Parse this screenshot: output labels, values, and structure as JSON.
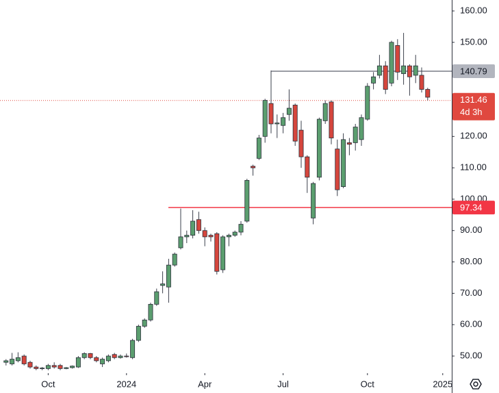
{
  "chart_data": {
    "type": "candlestick",
    "xlim": [
      -1,
      74
    ],
    "xticks": [
      {
        "value": 7,
        "label": "Oct"
      },
      {
        "value": 20,
        "label": "2024"
      },
      {
        "value": 33,
        "label": "Apr"
      },
      {
        "value": 46,
        "label": "Jul"
      },
      {
        "value": 60,
        "label": "Oct"
      },
      {
        "value": 72.5,
        "label": "2025"
      }
    ],
    "ylim": [
      44.55,
      163.49
    ],
    "yticks": [
      {
        "value": 50,
        "label": "50.00"
      },
      {
        "value": 60,
        "label": "60.00"
      },
      {
        "value": 70,
        "label": "70.00"
      },
      {
        "value": 80,
        "label": "80.00"
      },
      {
        "value": 90,
        "label": "90.00"
      },
      {
        "value": 100,
        "label": "100.00"
      },
      {
        "value": 110,
        "label": "110.00"
      },
      {
        "value": 120,
        "label": "120.00"
      },
      {
        "value": 130,
        "label": "130.00"
      },
      {
        "value": 140,
        "label": "140.00"
      },
      {
        "value": 150,
        "label": "150.00"
      },
      {
        "value": 160,
        "label": "160.00"
      }
    ],
    "up_color": "#5b9e6f",
    "down_color": "#d5463d",
    "open": [
      48,
      47.5,
      48.5,
      50,
      48,
      46.5,
      46,
      46,
      47,
      47,
      46,
      46.3,
      46.5,
      49.5,
      50.8,
      49.5,
      47.5,
      48.5,
      50.5,
      49.5,
      50,
      49.5,
      55,
      59.5,
      61.5,
      66.5,
      72.5,
      72,
      79,
      84.5,
      88,
      88.5,
      93.5,
      90,
      88.5,
      89,
      77.5,
      88,
      88.5,
      89.5,
      93,
      110.5,
      113,
      120,
      130.5,
      124,
      123.5,
      127,
      130,
      122,
      113.5,
      94,
      107,
      125,
      131,
      116,
      104,
      118,
      118,
      119,
      125.5,
      137,
      139.5,
      142.5,
      137,
      149,
      140,
      142.5,
      139.5,
      139.5,
      135
    ],
    "high": [
      49,
      51,
      51.2,
      50.5,
      48.5,
      47,
      46.5,
      47.5,
      48,
      47.5,
      46.5,
      47,
      50,
      51.2,
      51,
      50,
      49.5,
      50.5,
      51,
      50.5,
      50.8,
      55.5,
      60,
      62,
      67,
      71.5,
      77,
      81,
      83,
      97,
      90,
      96.5,
      96,
      91,
      89,
      89.5,
      88.5,
      89,
      90,
      93,
      106.5,
      111,
      120.5,
      132,
      141,
      127,
      127.5,
      135,
      130.5,
      125,
      114,
      105.5,
      126,
      131.5,
      131.5,
      119,
      121,
      119.5,
      124,
      127,
      137,
      140.5,
      146,
      144,
      150.5,
      151,
      153,
      143,
      146,
      142,
      135.5
    ],
    "low": [
      47,
      47,
      48,
      47,
      46,
      45.5,
      45.5,
      45.5,
      46,
      45.5,
      45.8,
      46,
      46.2,
      49,
      49,
      48,
      46.5,
      48,
      49,
      49.2,
      49.5,
      49,
      54.5,
      59,
      61,
      66,
      70,
      67,
      78.5,
      84,
      86,
      87.5,
      89,
      85,
      86.5,
      76,
      76.5,
      85,
      88,
      88.5,
      92.5,
      107.5,
      112.5,
      118,
      121,
      119.5,
      121,
      125,
      117,
      110,
      102,
      92,
      106,
      124,
      117.5,
      101,
      103.5,
      114,
      115.5,
      117,
      125,
      135,
      138.5,
      133.5,
      136,
      138,
      136.5,
      133,
      137,
      134,
      131.5
    ],
    "close": [
      48.5,
      49,
      49.5,
      47.5,
      46.5,
      46,
      46.2,
      47,
      46.5,
      46,
      46.3,
      46.8,
      49.5,
      50.8,
      49.5,
      48.5,
      49,
      50,
      49.5,
      50,
      49.8,
      55,
      59.5,
      61.5,
      66.5,
      70.5,
      73,
      79,
      82.5,
      88,
      88.5,
      93,
      90,
      88,
      88,
      77,
      88,
      88.5,
      89.5,
      92,
      106,
      110,
      119.5,
      131.5,
      124,
      124.3,
      126,
      129,
      118.5,
      113.5,
      107,
      105,
      125.5,
      130.5,
      119.5,
      103,
      119,
      117.5,
      123,
      126,
      136,
      139,
      142.5,
      135,
      150,
      140.5,
      142.5,
      139,
      142.5,
      135,
      132.5
    ],
    "levels": [
      {
        "value": 140.79,
        "color": "#787b86",
        "text_color": "#131722"
      },
      {
        "value": 97.34,
        "color": "#f23645",
        "text_color": "#ffffff"
      }
    ],
    "last_price": 131.46,
    "last_price_color": "#e0483f",
    "countdown": "4d 3h"
  }
}
